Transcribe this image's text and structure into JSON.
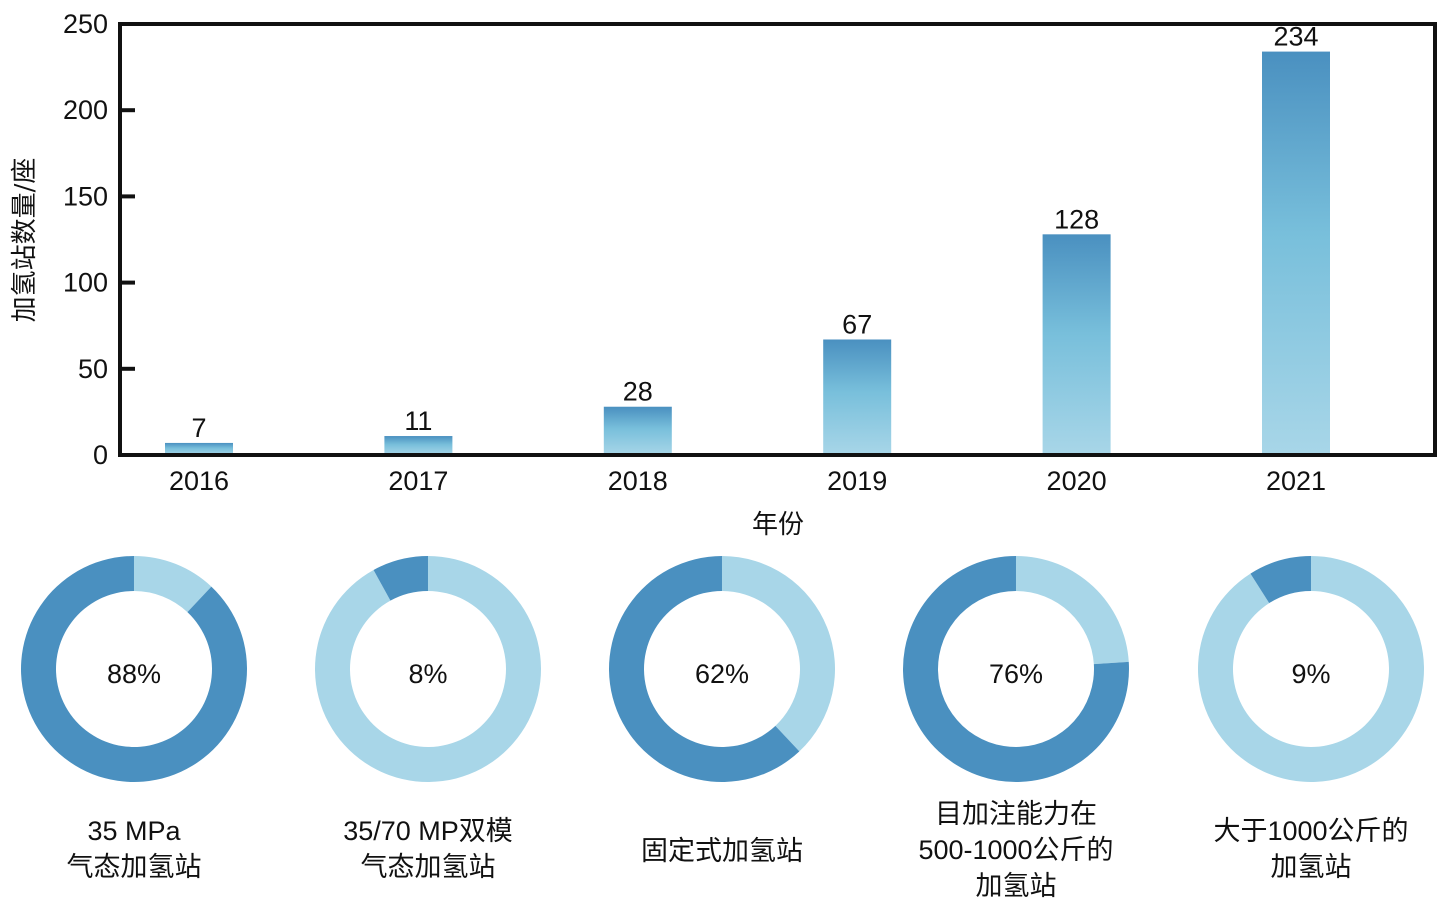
{
  "chart_data": [
    {
      "type": "bar",
      "title": "",
      "xlabel": "年份",
      "ylabel": "加氢站数量/座",
      "categories": [
        "2016",
        "2017",
        "2018",
        "2019",
        "2020",
        "2021"
      ],
      "values": [
        7,
        11,
        28,
        67,
        128,
        234
      ],
      "data_labels": [
        "7",
        "11",
        "28",
        "67",
        "128",
        "234"
      ],
      "ylim": [
        0,
        250
      ],
      "yticks": [
        0,
        50,
        100,
        150,
        200,
        250
      ],
      "ytick_labels": [
        "0",
        "50",
        "100",
        "150",
        "200",
        "250"
      ],
      "grid": false,
      "legend": "none",
      "colors": {
        "bar_top": "#4a90c0",
        "bar_mid": "#78bfdb",
        "bar_bottom": "#a8d6e8"
      }
    },
    {
      "type": "pie",
      "variant": "donut",
      "charts": [
        {
          "value_pct": 88,
          "label": "88%",
          "caption": [
            "35 MPa",
            "气态加氢站"
          ]
        },
        {
          "value_pct": 8,
          "label": "8%",
          "caption": [
            "35/70 MP双模",
            "气态加氢站"
          ]
        },
        {
          "value_pct": 62,
          "label": "62%",
          "caption": [
            "固定式加氢站"
          ]
        },
        {
          "value_pct": 76,
          "label": "76%",
          "caption": [
            "目加注能力在",
            "500-1000公斤的",
            "加氢站"
          ]
        },
        {
          "value_pct": 9,
          "label": "9%",
          "caption": [
            "大于1000公斤的",
            "加氢站"
          ]
        }
      ],
      "colors": {
        "highlight": "#4a90c0",
        "remainder": "#a8d6e8"
      },
      "direction": "counter-clockwise from top"
    }
  ]
}
